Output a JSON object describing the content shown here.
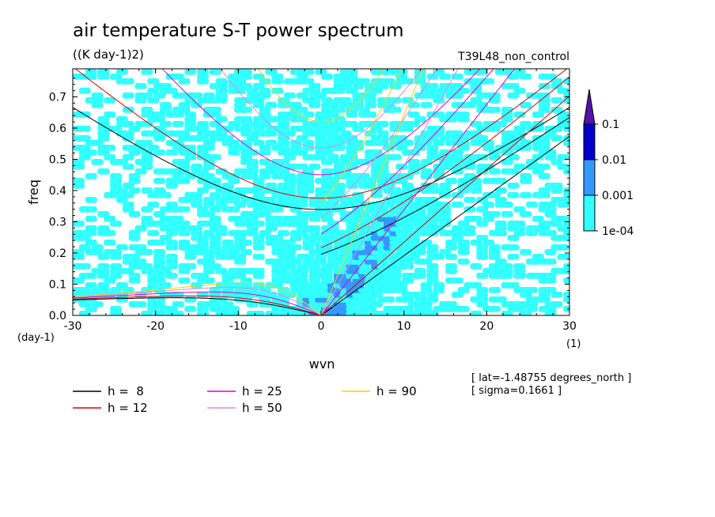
{
  "chart_data": {
    "type": "heatmap",
    "title": "air temperature S-T power spectrum",
    "subtitle": "((K day-1)2)",
    "run_label": "T39L48_non_control",
    "xlabel": "wvn",
    "ylabel": "freq",
    "x_unit": "(1)",
    "y_unit": "(day-1)",
    "xlim": [
      -30,
      30
    ],
    "ylim": [
      0,
      0.79
    ],
    "x_ticks": [
      -30,
      -20,
      -10,
      0,
      10,
      20,
      30
    ],
    "x_tick_labels": [
      "-30",
      "-20",
      "-10",
      "0",
      "10",
      "20",
      "30"
    ],
    "y_ticks": [
      0,
      0.1,
      0.2,
      0.3,
      0.4,
      0.5,
      0.6,
      0.7
    ],
    "y_tick_labels": [
      "0.0",
      "0.1",
      "0.2",
      "0.3",
      "0.4",
      "0.5",
      "0.6",
      "0.7"
    ],
    "colorbar": {
      "levels": [
        "1e-04",
        "0.001",
        "0.01",
        "0.1"
      ],
      "colors": [
        "#33ffff",
        "#3399ff",
        "#0000cc",
        "#5511aa"
      ]
    },
    "dispersion_curves": [
      {
        "label": "h =  8",
        "h": 8,
        "color": "#000000"
      },
      {
        "label": "h = 12",
        "h": 12,
        "color": "#dd0000"
      },
      {
        "label": "h = 25",
        "h": 25,
        "color": "#dd00cc"
      },
      {
        "label": "h = 50",
        "h": 50,
        "color": "#dd88dd"
      },
      {
        "label": "h = 90",
        "h": 90,
        "color": "#ffcc00"
      }
    ],
    "info": [
      "[ lat=-1.48755 degrees_north ]",
      "[ sigma=0.1661 ]"
    ]
  }
}
